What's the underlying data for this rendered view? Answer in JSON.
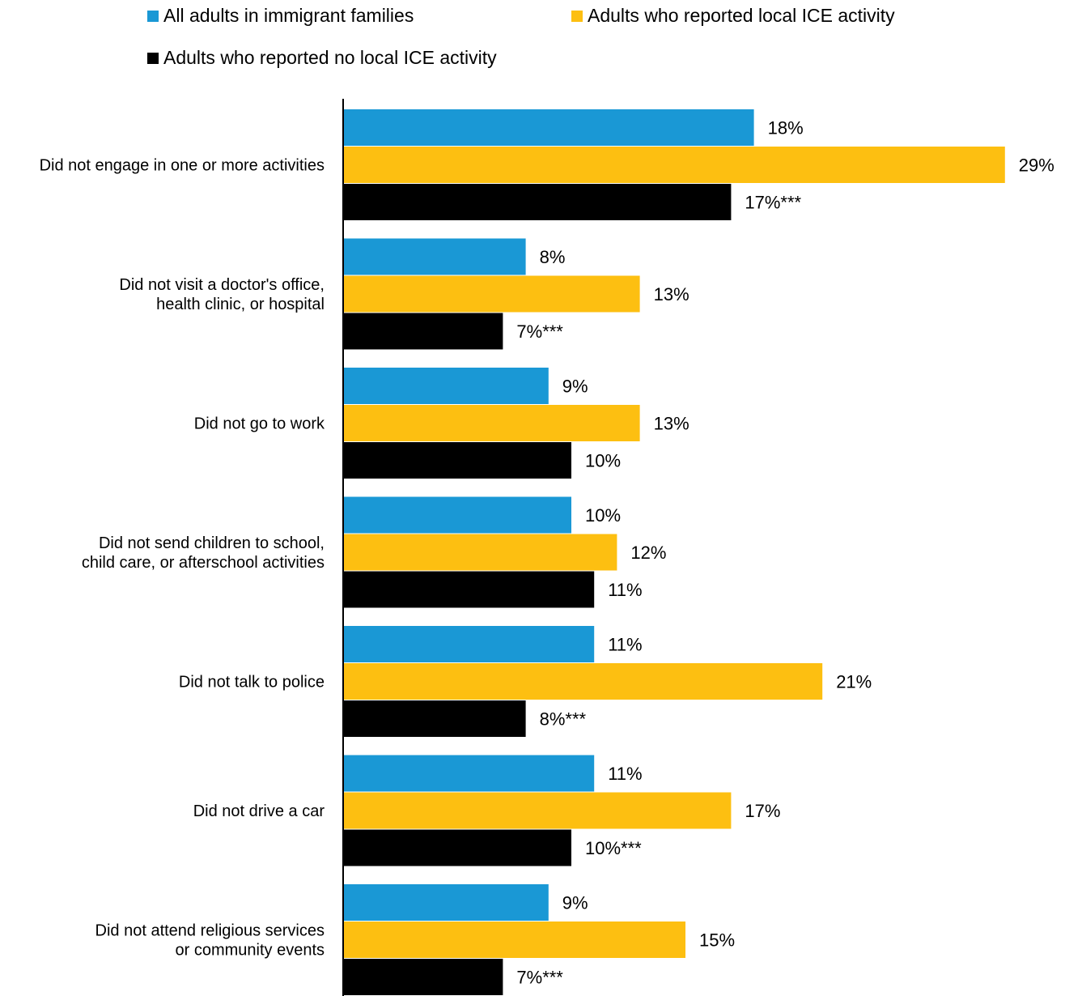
{
  "chart_data": {
    "type": "bar",
    "orientation": "horizontal",
    "categories": [
      [
        "Did not engage in one or more activities"
      ],
      [
        "Did not visit a doctor's office,",
        "health clinic, or hospital"
      ],
      [
        "Did not go to work"
      ],
      [
        "Did not send children to school,",
        "child care,  or afterschool activities"
      ],
      [
        "Did not talk to police"
      ],
      [
        "Did not drive a car"
      ],
      [
        "Did not attend religious services",
        "or community events"
      ]
    ],
    "series": [
      {
        "name": "All adults in immigrant families",
        "color": "#1a98d5",
        "values": [
          18,
          8,
          9,
          10,
          11,
          11,
          9
        ],
        "labels": [
          "18%",
          "8%",
          "9%",
          "10%",
          "11%",
          "11%",
          "9%"
        ]
      },
      {
        "name": "Adults who reported local ICE activity",
        "color": "#fdbf11",
        "values": [
          29,
          13,
          13,
          12,
          21,
          17,
          15
        ],
        "labels": [
          "29%",
          "13%",
          "13%",
          "12%",
          "21%",
          "17%",
          "15%"
        ]
      },
      {
        "name": "Adults who reported no local ICE activity",
        "color": "#000000",
        "values": [
          17,
          7,
          10,
          11,
          8,
          10,
          7
        ],
        "labels": [
          "17%***",
          "7%***",
          "10%",
          "11%",
          "8%***",
          "10%***",
          "7%***"
        ]
      }
    ],
    "legend_position": "top",
    "grid": false
  }
}
